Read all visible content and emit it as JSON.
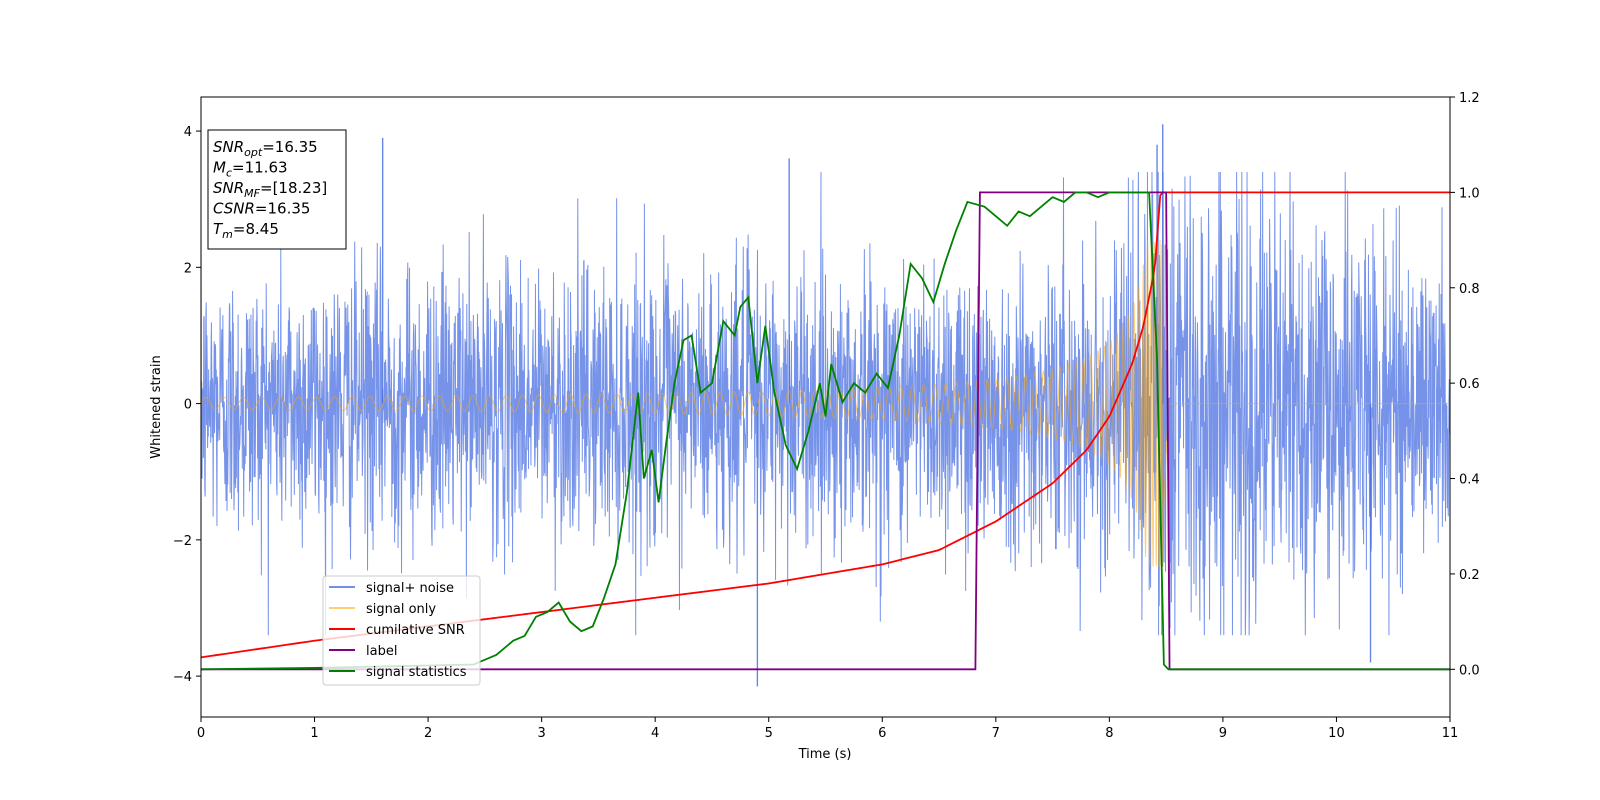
{
  "chart_data": {
    "type": "line",
    "title": "",
    "xlabel": "Time (s)",
    "ylabel": "Whitened strain",
    "xlim": [
      0,
      11
    ],
    "ylim": [
      -4.6,
      4.5
    ],
    "y2lim": [
      -0.1,
      1.2
    ],
    "grid": false,
    "legend_position": "lower-left",
    "xticks": [
      "0",
      "1",
      "2",
      "3",
      "4",
      "5",
      "6",
      "7",
      "8",
      "9",
      "10",
      "11"
    ],
    "yticks": [
      "4",
      "2",
      "0",
      "−2",
      "−4"
    ],
    "y2ticks": [
      "1.2",
      "1.0",
      "0.8",
      "0.6",
      "0.4",
      "0.2",
      "0.0"
    ],
    "annotation": {
      "lines": [
        {
          "base": "SNR",
          "sub": "opt",
          "value": "=16.35"
        },
        {
          "base": "M",
          "sub": "c",
          "value": "=11.63"
        },
        {
          "base": "SNR",
          "sub": "MF",
          "value": "=[18.23]"
        },
        {
          "base": "CSNR",
          "sub": "",
          "value": "=16.35"
        },
        {
          "base": "T",
          "sub": "m",
          "value": "=8.45"
        }
      ]
    },
    "series": [
      {
        "name": "signal+ noise",
        "color": "#4169e1",
        "axis": "left",
        "kind": "noise",
        "envelope": [
          [
            0,
            1.5
          ],
          [
            8.0,
            1.6
          ],
          [
            8.45,
            3.0
          ],
          [
            11,
            1.5
          ]
        ],
        "spikes": [
          [
            1.6,
            3.9
          ],
          [
            4.9,
            -4.15
          ],
          [
            8.47,
            4.1
          ],
          [
            10.3,
            -3.8
          ],
          [
            5.18,
            3.6
          ],
          [
            8.42,
            3.8
          ]
        ]
      },
      {
        "name": "signal only",
        "color": "#ffa500",
        "axis": "left",
        "kind": "chirp",
        "start": 0,
        "end": 8.47,
        "peak_amplitude": 2.4,
        "end_amplitude": 0.05
      },
      {
        "name": "cumilative SNR",
        "color": "#ff0000",
        "axis": "right",
        "x": [
          0,
          1,
          2,
          3,
          4,
          5,
          6,
          6.5,
          7,
          7.5,
          7.8,
          8.0,
          8.2,
          8.3,
          8.4,
          8.45,
          11
        ],
        "y": [
          0.025,
          0.06,
          0.09,
          0.12,
          0.15,
          0.18,
          0.22,
          0.25,
          0.31,
          0.39,
          0.46,
          0.53,
          0.64,
          0.72,
          0.84,
          1.0,
          1.0
        ]
      },
      {
        "name": "label",
        "color": "#800080",
        "axis": "right",
        "x": [
          0,
          6.82,
          6.86,
          8.5,
          8.53,
          11
        ],
        "y": [
          0.0,
          0.0,
          1.0,
          1.0,
          0.0,
          0.0
        ]
      },
      {
        "name": "signal statistics",
        "color": "#008000",
        "axis": "right",
        "x": [
          0,
          1,
          2.4,
          2.6,
          2.75,
          2.85,
          2.95,
          3.05,
          3.15,
          3.25,
          3.35,
          3.45,
          3.55,
          3.65,
          3.75,
          3.85,
          3.9,
          3.97,
          4.03,
          4.1,
          4.17,
          4.25,
          4.32,
          4.4,
          4.5,
          4.6,
          4.7,
          4.75,
          4.82,
          4.9,
          4.97,
          5.05,
          5.15,
          5.25,
          5.35,
          5.45,
          5.5,
          5.55,
          5.65,
          5.75,
          5.85,
          5.95,
          6.05,
          6.15,
          6.25,
          6.35,
          6.45,
          6.55,
          6.65,
          6.75,
          6.9,
          7.0,
          7.1,
          7.2,
          7.3,
          7.4,
          7.5,
          7.6,
          7.7,
          7.8,
          7.9,
          8.0,
          8.2,
          8.35,
          8.42,
          8.48,
          8.52,
          8.6,
          11
        ],
        "y": [
          0.0,
          0.003,
          0.01,
          0.03,
          0.06,
          0.07,
          0.11,
          0.12,
          0.14,
          0.1,
          0.08,
          0.09,
          0.15,
          0.22,
          0.37,
          0.58,
          0.4,
          0.46,
          0.35,
          0.48,
          0.6,
          0.69,
          0.7,
          0.58,
          0.6,
          0.73,
          0.7,
          0.76,
          0.78,
          0.6,
          0.72,
          0.58,
          0.47,
          0.42,
          0.5,
          0.6,
          0.53,
          0.64,
          0.56,
          0.6,
          0.58,
          0.62,
          0.59,
          0.7,
          0.85,
          0.82,
          0.77,
          0.85,
          0.92,
          0.98,
          0.97,
          0.95,
          0.93,
          0.96,
          0.95,
          0.97,
          0.99,
          0.98,
          1.0,
          1.0,
          0.99,
          1.0,
          1.0,
          1.0,
          0.65,
          0.01,
          0.0,
          0.0,
          0.0
        ]
      }
    ]
  }
}
